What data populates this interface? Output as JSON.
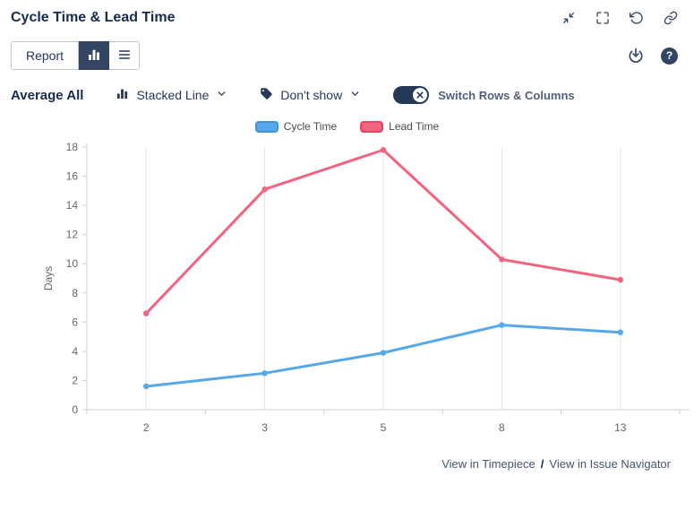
{
  "header": {
    "title": "Cycle Time & Lead Time"
  },
  "toolbar": {
    "report_label": "Report",
    "help_glyph": "?"
  },
  "controls": {
    "average_label": "Average All",
    "chart_type_value": "Stacked Line",
    "estimation_value": "Don't show",
    "switch_label": "Switch Rows & Columns"
  },
  "footer": {
    "timepiece_link": "View in Timepiece",
    "separator": "/",
    "issue_navigator_link": "View in Issue Navigator"
  },
  "colors": {
    "dark_navy": "#344563",
    "cycle_time_blue": "#57a8e9",
    "lead_time_pink": "#f4637f",
    "gridline": "#e4e4e4"
  },
  "chart_data": {
    "type": "line",
    "title": "",
    "x": [
      "2",
      "3",
      "5",
      "8",
      "13"
    ],
    "xlabel": "",
    "ylabel": "Days",
    "ylim": [
      0,
      18
    ],
    "ytick_step": 2,
    "grid": "vertical-category-lines",
    "legend_position": "top-center",
    "series": [
      {
        "name": "Cycle Time",
        "color": "#57a8e9",
        "swatch_border": "#3c93dc",
        "values": [
          1.6,
          2.5,
          3.9,
          5.8,
          5.3
        ]
      },
      {
        "name": "Lead Time",
        "color": "#f4637f",
        "swatch_border": "#ee4166",
        "values": [
          6.6,
          15.1,
          17.8,
          10.3,
          8.9
        ]
      }
    ]
  }
}
